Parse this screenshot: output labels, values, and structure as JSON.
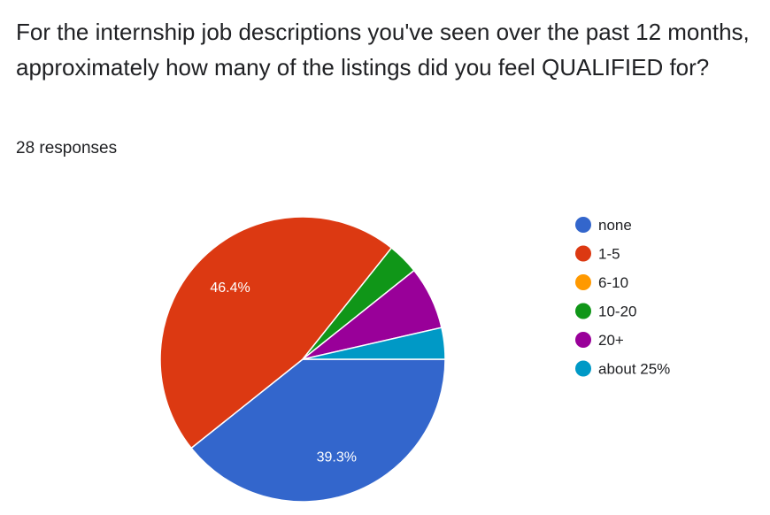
{
  "question": {
    "title": "For the internship job descriptions you've seen over the past 12 months, approximately how many of the listings did you feel QUALIFIED for?",
    "response_count": "28 responses"
  },
  "chart_data": {
    "type": "pie",
    "categories": [
      "none",
      "1-5",
      "6-10",
      "10-20",
      "20+",
      "about 25%"
    ],
    "values": [
      11,
      13,
      0,
      1,
      2,
      1
    ],
    "percent_labels": [
      "39.3%",
      "46.4%",
      "",
      "",
      "",
      ""
    ],
    "colors": [
      "#3366cc",
      "#dc3912",
      "#ff9900",
      "#109618",
      "#990099",
      "#0099c6"
    ],
    "legend_position": "right"
  }
}
